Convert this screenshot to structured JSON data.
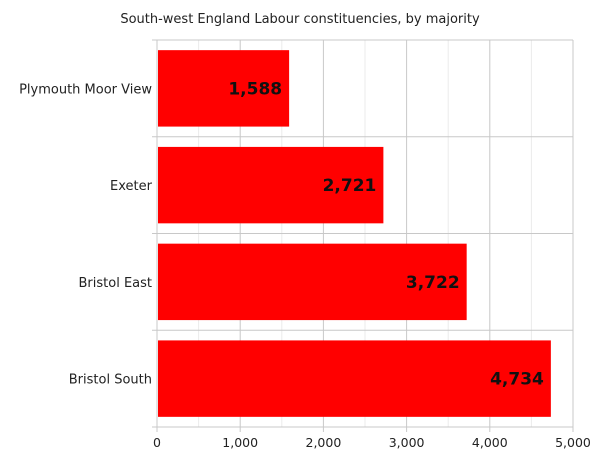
{
  "chart_data": {
    "type": "bar",
    "orientation": "horizontal",
    "title": "South-west England Labour constituencies, by majority",
    "xlabel": "",
    "ylabel": "",
    "categories": [
      "Plymouth Moor View",
      "Exeter",
      "Bristol East",
      "Bristol South"
    ],
    "values": [
      1588,
      2721,
      3722,
      4734
    ],
    "data_labels": [
      "1,588",
      "2,721",
      "3,722",
      "4,734"
    ],
    "xlim": [
      0,
      5000
    ],
    "x_ticks": [
      0,
      1000,
      2000,
      3000,
      4000,
      5000
    ],
    "x_tick_labels": [
      "0",
      "1,000",
      "2,000",
      "3,000",
      "4,000",
      "5,000"
    ],
    "grid": true,
    "legend": "none",
    "bar_color": "#ff0000"
  }
}
